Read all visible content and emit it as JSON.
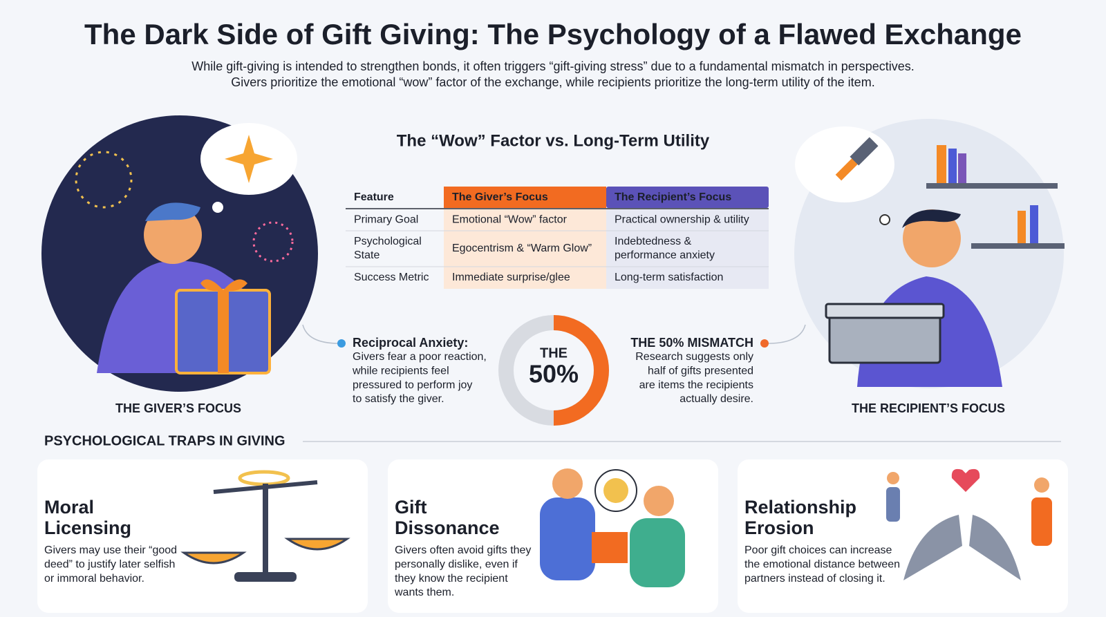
{
  "header": {
    "title": "The Dark Side of Gift Giving: The Psychology of a Flawed Exchange",
    "subtitle": [
      "While gift-giving is intended to strengthen bonds, it often triggers “gift-giving stress” due to a fundamental mismatch in perspectives.",
      "Givers prioritize the emotional “wow” factor of the exchange, while recipients prioritize the long-term utility of the item."
    ]
  },
  "comparison": {
    "title": "The “Wow” Factor vs. Long-Term Utility",
    "table": {
      "headers": [
        "Feature",
        "The Giver’s Focus",
        "The Recipient’s Focus"
      ],
      "rows": [
        [
          [
            "Primary Goal"
          ],
          [
            "Emotional “Wow” factor"
          ],
          [
            "Practical ownership & utility"
          ]
        ],
        [
          [
            "Psychological",
            "State"
          ],
          [
            "Egocentrism & “Warm Glow”"
          ],
          [
            "Indebtedness &",
            "performance anxiety"
          ]
        ],
        [
          [
            "Success Metric"
          ],
          [
            "Immediate surprise/glee"
          ],
          [
            "Long-term satisfaction"
          ]
        ]
      ]
    }
  },
  "giver_label": "THE GIVER’S FOCUS",
  "recipient_label": "THE RECIPIENT’S FOCUS",
  "callouts": {
    "left": {
      "title": "Reciprocal Anxiety:",
      "text": [
        "Givers fear a poor reaction,",
        "while recipients feel",
        "pressured to perform joy",
        "to satisfy the giver."
      ]
    },
    "right": {
      "title": "THE 50% MISMATCH",
      "text": [
        "Research suggests only",
        "half of gifts presented",
        "are items the recipients",
        "actually desire."
      ]
    }
  },
  "donut": {
    "caption": "THE",
    "value": 50,
    "value_label": "50%"
  },
  "traps": {
    "title": "PSYCHOLOGICAL TRAPS IN GIVING",
    "cards": [
      {
        "title": [
          "Moral",
          "Licensing"
        ],
        "text": [
          "Givers may use their “good",
          "deed” to justify later selfish",
          "or immoral behavior."
        ]
      },
      {
        "title": [
          "Gift",
          "Dissonance"
        ],
        "text": [
          "Givers often avoid gifts they",
          "personally dislike, even if",
          "they know the recipient",
          "wants them."
        ]
      },
      {
        "title": [
          "Relationship",
          "Erosion"
        ],
        "text": [
          "Poor gift choices can increase",
          "the emotional distance between",
          "partners instead of closing it."
        ]
      }
    ]
  }
}
